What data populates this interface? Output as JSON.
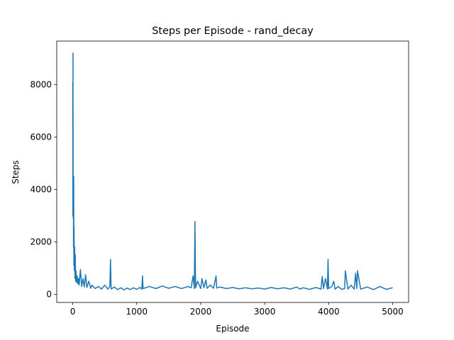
{
  "chart_data": {
    "type": "line",
    "title": "Steps per Episode - rand_decay",
    "xlabel": "Episode",
    "ylabel": "Steps",
    "x": [
      0,
      2,
      4,
      6,
      8,
      10,
      12,
      15,
      18,
      20,
      25,
      30,
      35,
      40,
      45,
      50,
      60,
      70,
      80,
      90,
      100,
      120,
      140,
      160,
      180,
      200,
      220,
      250,
      280,
      300,
      350,
      400,
      450,
      500,
      550,
      580,
      590,
      600,
      650,
      700,
      750,
      800,
      850,
      900,
      950,
      1000,
      1050,
      1080,
      1090,
      1100,
      1200,
      1300,
      1400,
      1500,
      1600,
      1700,
      1800,
      1850,
      1880,
      1900,
      1910,
      1920,
      1950,
      2000,
      2020,
      2050,
      2080,
      2100,
      2150,
      2200,
      2240,
      2250,
      2300,
      2400,
      2500,
      2600,
      2700,
      2800,
      2900,
      3000,
      3100,
      3200,
      3300,
      3400,
      3500,
      3550,
      3600,
      3700,
      3800,
      3880,
      3900,
      3920,
      3950,
      3980,
      3990,
      4000,
      4050,
      4080,
      4100,
      4150,
      4200,
      4250,
      4260,
      4300,
      4350,
      4400,
      4420,
      4440,
      4450,
      4500,
      4600,
      4700,
      4800,
      4900,
      4999
    ],
    "series": [
      {
        "color": "#1f77b4",
        "values": [
          8100,
          3000,
          9200,
          4000,
          2900,
          4500,
          1800,
          4500,
          1100,
          2600,
          900,
          1800,
          600,
          1500,
          500,
          900,
          450,
          700,
          400,
          600,
          350,
          950,
          300,
          600,
          280,
          750,
          260,
          500,
          230,
          350,
          220,
          300,
          200,
          350,
          200,
          300,
          1330,
          200,
          280,
          180,
          250,
          170,
          240,
          180,
          250,
          190,
          260,
          200,
          700,
          220,
          300,
          220,
          320,
          230,
          300,
          220,
          300,
          250,
          700,
          220,
          2780,
          250,
          500,
          220,
          600,
          250,
          550,
          230,
          350,
          230,
          700,
          240,
          280,
          220,
          260,
          210,
          250,
          210,
          240,
          200,
          260,
          210,
          250,
          200,
          280,
          200,
          250,
          190,
          260,
          200,
          680,
          220,
          600,
          200,
          1330,
          220,
          300,
          500,
          200,
          300,
          190,
          220,
          900,
          200,
          350,
          200,
          800,
          220,
          900,
          200,
          280,
          180,
          300,
          190,
          250
        ]
      }
    ],
    "xlim": [
      -250,
      5249
    ],
    "ylim": [
      -310,
      9660
    ],
    "xticks": [
      0,
      1000,
      2000,
      3000,
      4000,
      5000
    ],
    "yticks": [
      0,
      2000,
      4000,
      6000,
      8000
    ]
  }
}
